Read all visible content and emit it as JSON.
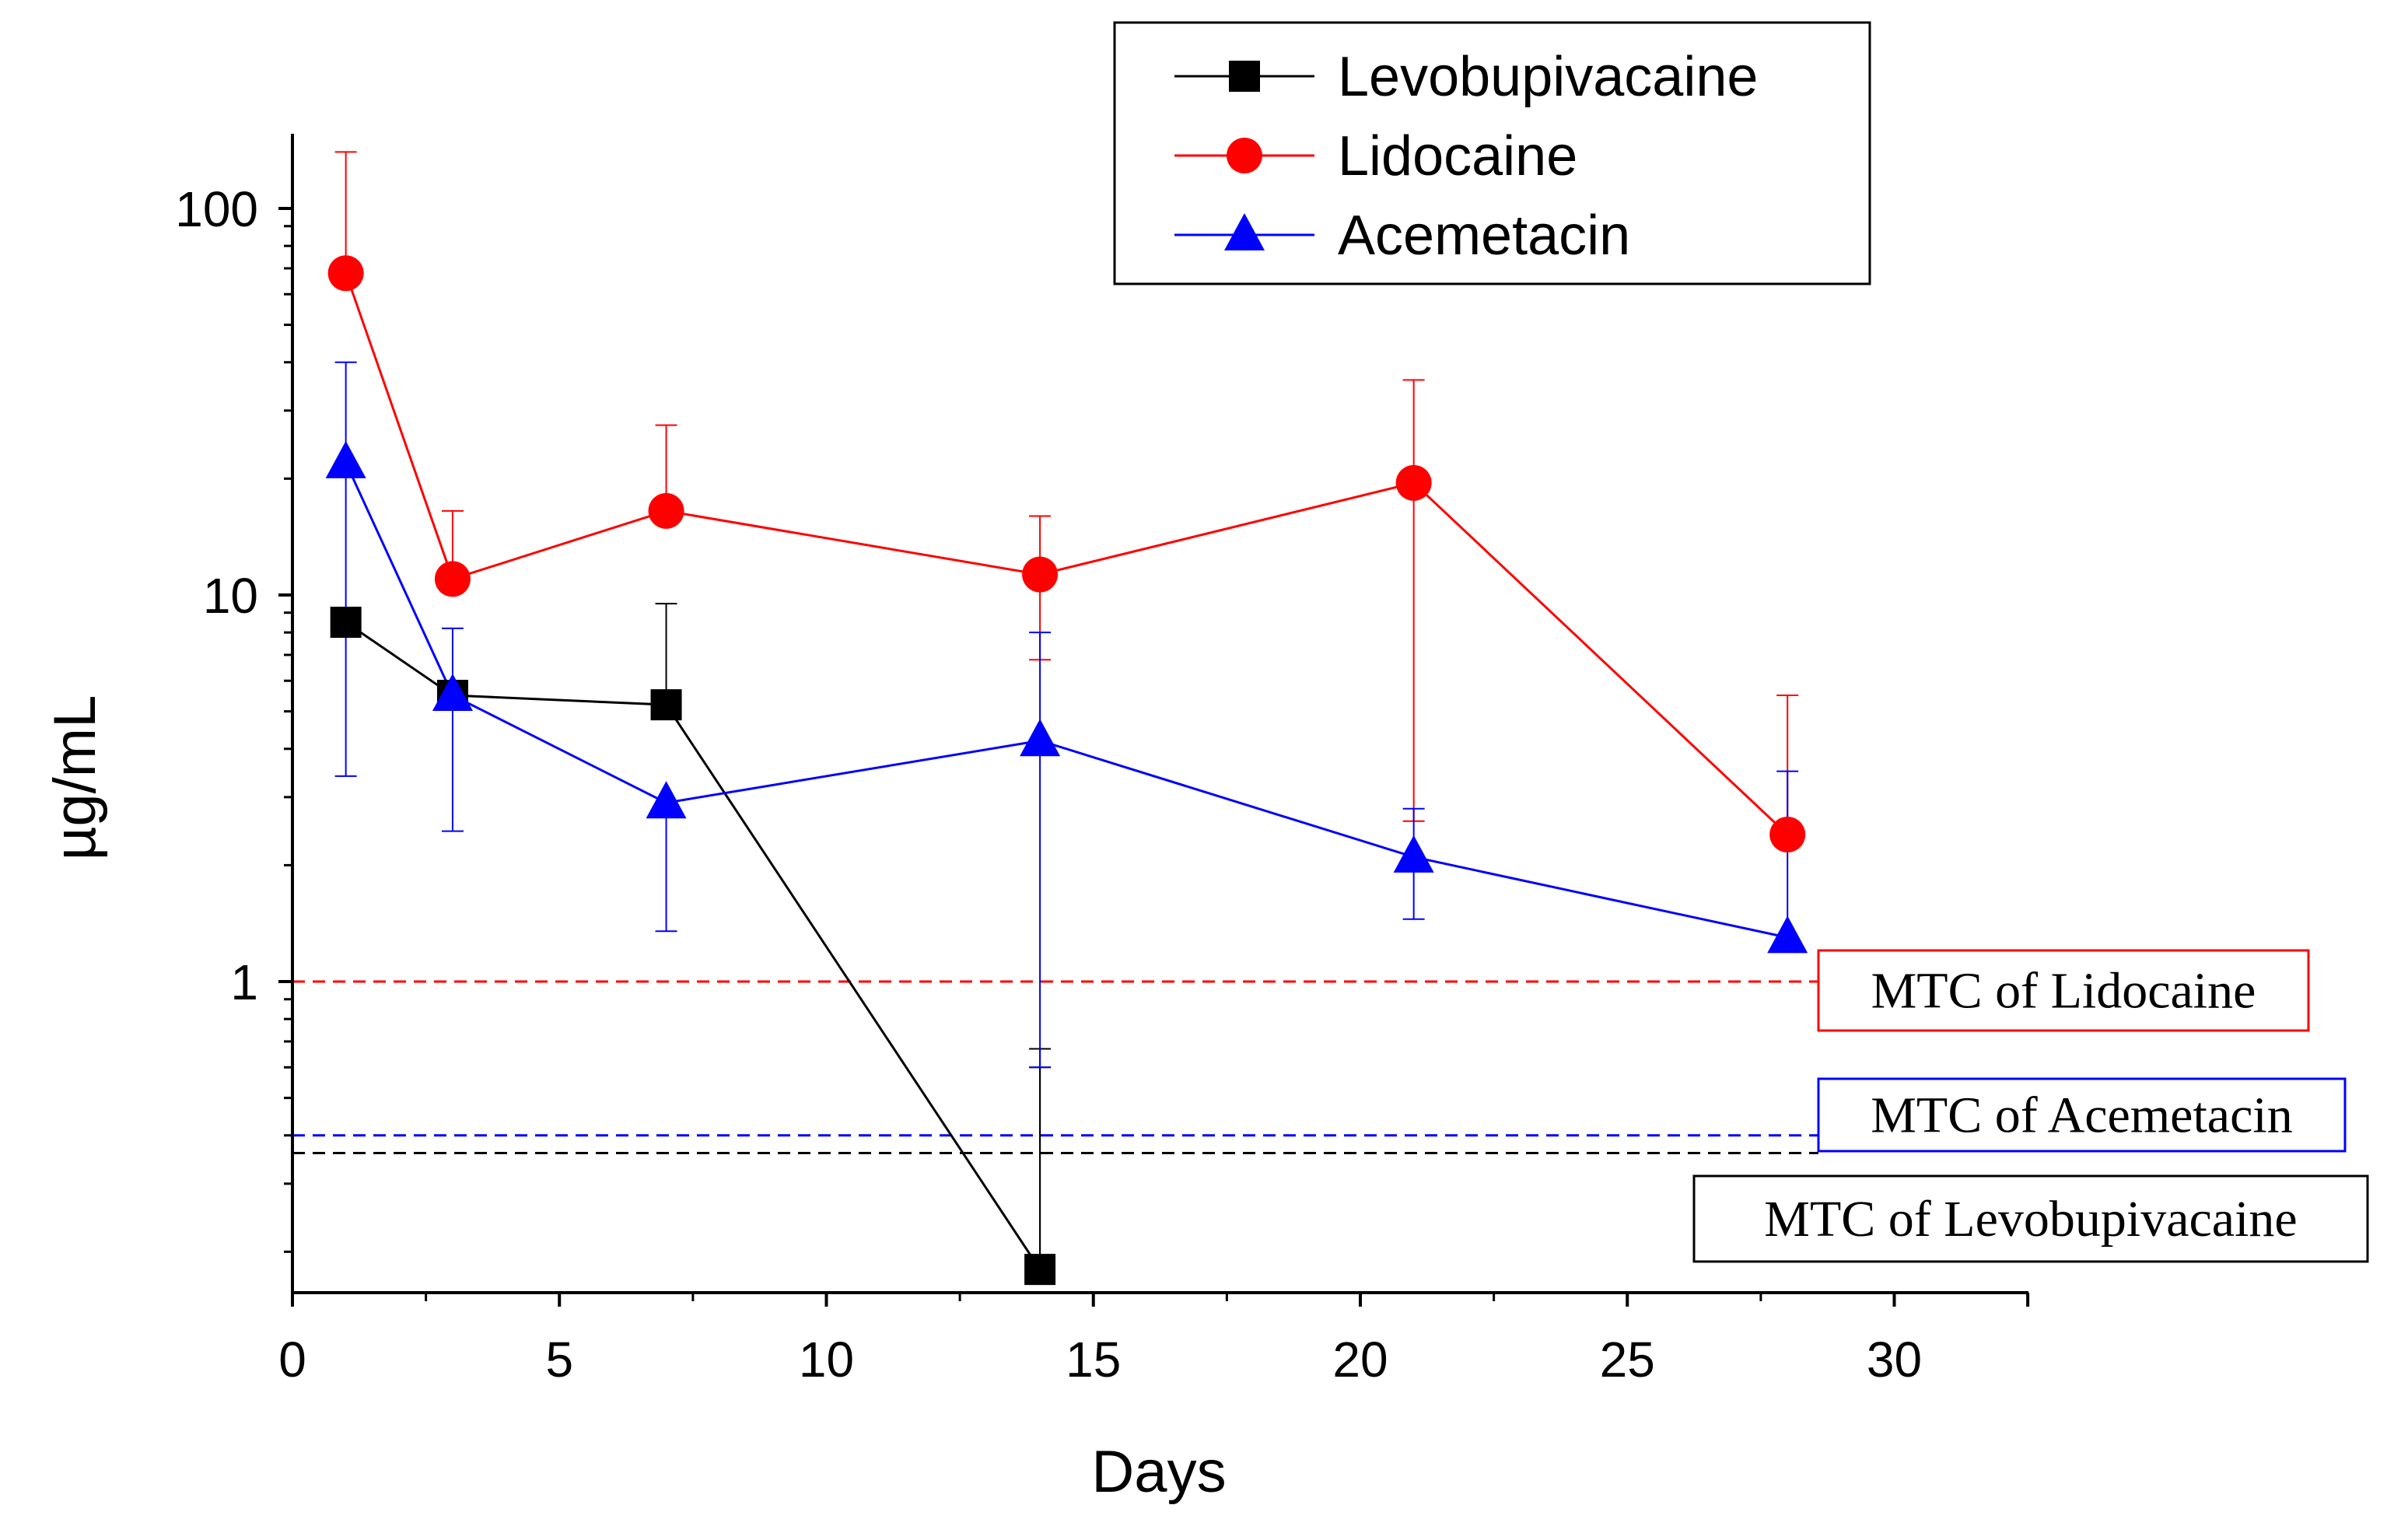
{
  "chart_data": {
    "type": "line",
    "title": "",
    "xlabel": "Days",
    "ylabel": "µg/mL",
    "yscale": "log",
    "xlim": [
      0,
      32.5
    ],
    "ylim": [
      0.165,
      165
    ],
    "x_ticks": [
      0,
      5,
      10,
      15,
      20,
      25,
      30
    ],
    "x_tick_labels": [
      "0",
      "5",
      "10",
      "15",
      "20",
      "25",
      "30"
    ],
    "y_ticks": [
      1,
      10,
      100
    ],
    "y_tick_labels": [
      "1",
      "10",
      "100"
    ],
    "legend_position": "top-center",
    "series": [
      {
        "name": "Levobupivacaine",
        "color": "#000000",
        "marker": "square",
        "x": [
          1,
          3,
          7,
          14
        ],
        "y": [
          8.5,
          5.5,
          5.2,
          0.18
        ],
        "err_high": [
          null,
          null,
          9.5,
          0.67
        ],
        "err_low": [
          null,
          null,
          null,
          0.6
        ]
      },
      {
        "name": "Lidocaine",
        "color": "#ff0000",
        "marker": "circle",
        "x": [
          1,
          3,
          7,
          14,
          21,
          28
        ],
        "y": [
          68,
          11,
          16.5,
          11.3,
          19.5,
          2.4
        ],
        "err_high": [
          140,
          16.5,
          27.5,
          16,
          36,
          5.5
        ],
        "err_low": [
          null,
          null,
          null,
          6.8,
          2.6,
          null
        ]
      },
      {
        "name": "Acemetacin",
        "color": "#0000ff",
        "marker": "triangle",
        "x": [
          1,
          3,
          7,
          14,
          21,
          28
        ],
        "y": [
          22,
          5.5,
          2.9,
          4.2,
          2.1,
          1.3
        ],
        "err_high": [
          40,
          8.2,
          null,
          8.0,
          2.8,
          3.5
        ],
        "err_low": [
          3.4,
          2.45,
          1.35,
          0.6,
          1.45,
          null
        ]
      }
    ],
    "reference_lines": [
      {
        "label": "MTC of Lidocaine",
        "value": 1.0,
        "color": "#ff0000"
      },
      {
        "label": "MTC of Acemetacin",
        "value": 0.4,
        "color": "#0000ff"
      },
      {
        "label": "MTC of Levobupivacaine",
        "value": 0.36,
        "color": "#000000"
      }
    ]
  }
}
